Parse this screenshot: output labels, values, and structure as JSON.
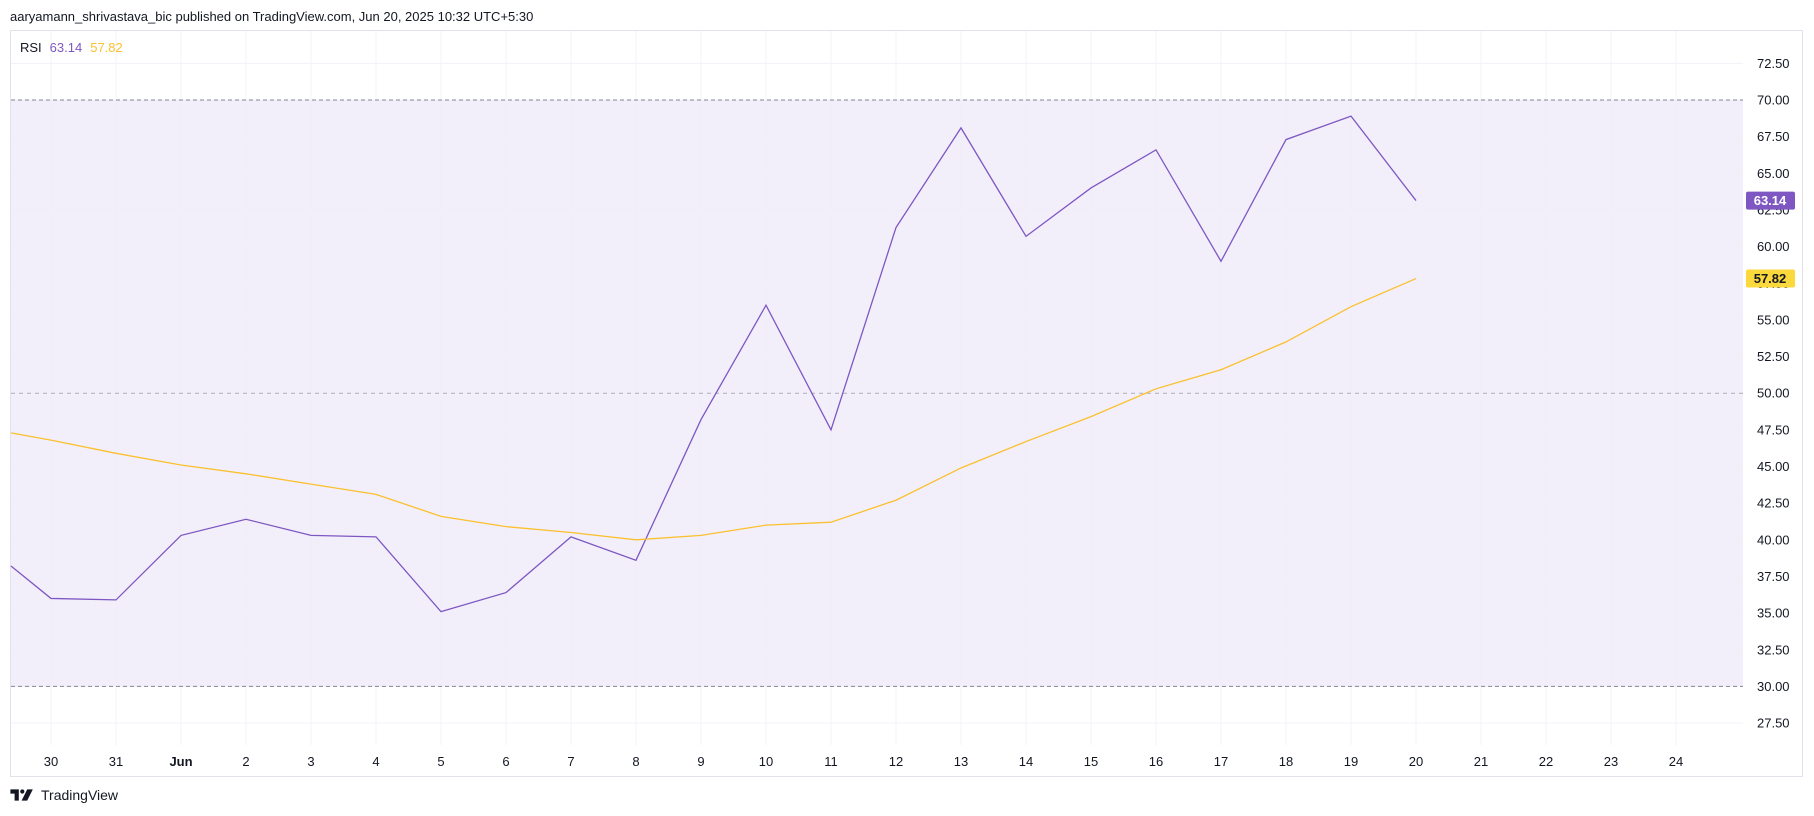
{
  "header": {
    "published_text": "aaryamann_shrivastava_bic published on TradingView.com, Jun 20, 2025 10:32 UTC+5:30"
  },
  "legend": {
    "name": "RSI",
    "rsi_value": "63.14",
    "ma_value": "57.82"
  },
  "footer": {
    "brand": "TradingView",
    "logo_icon": "tradingview-logo-icon"
  },
  "colors": {
    "rsi": "#7e57c2",
    "ma": "#fbc02d",
    "band_fill": "#f0ecf9",
    "band_line": "#787b86",
    "grid": "#f0f3fa",
    "rsi_label_bg": "#7e57c2",
    "ma_label_bg": "#fbd93d"
  },
  "chart_data": {
    "type": "line",
    "title": "",
    "xlabel": "",
    "ylabel": "",
    "x_ticks": [
      "30",
      "31",
      "Jun",
      "2",
      "3",
      "4",
      "5",
      "6",
      "7",
      "8",
      "9",
      "10",
      "11",
      "12",
      "13",
      "14",
      "15",
      "16",
      "17",
      "18",
      "19",
      "20",
      "21",
      "22",
      "23",
      "24"
    ],
    "ylim": [
      26,
      73.5
    ],
    "y_ticks": [
      "27.50",
      "30.00",
      "32.50",
      "35.00",
      "37.50",
      "40.00",
      "42.50",
      "45.00",
      "47.50",
      "50.00",
      "52.50",
      "55.00",
      "57.50",
      "60.00",
      "62.50",
      "65.00",
      "67.50",
      "70.00",
      "72.50"
    ],
    "bands": {
      "upper": 70,
      "middle": 50,
      "lower": 30
    },
    "grid": true,
    "x": [
      "29",
      "30",
      "31",
      "Jun 1",
      "2",
      "3",
      "4",
      "5",
      "6",
      "7",
      "8",
      "9",
      "10",
      "11",
      "12",
      "13",
      "14",
      "15",
      "16",
      "17",
      "18",
      "19",
      "20"
    ],
    "series": [
      {
        "name": "RSI",
        "values": [
          39.6,
          36.0,
          35.9,
          40.3,
          41.4,
          40.3,
          40.2,
          35.1,
          36.4,
          40.2,
          38.6,
          48.2,
          56.0,
          47.5,
          61.3,
          68.1,
          60.7,
          64.0,
          66.6,
          59.0,
          67.3,
          68.9,
          63.14
        ],
        "last_label": "63.14"
      },
      {
        "values": [
          47.6,
          46.8,
          45.9,
          45.1,
          44.5,
          43.8,
          43.1,
          41.6,
          40.9,
          40.5,
          40.0,
          40.3,
          41.0,
          41.2,
          42.7,
          44.9,
          46.7,
          48.4,
          50.3,
          51.6,
          53.5,
          55.9,
          57.82
        ],
        "last_label": "57.82"
      }
    ]
  }
}
